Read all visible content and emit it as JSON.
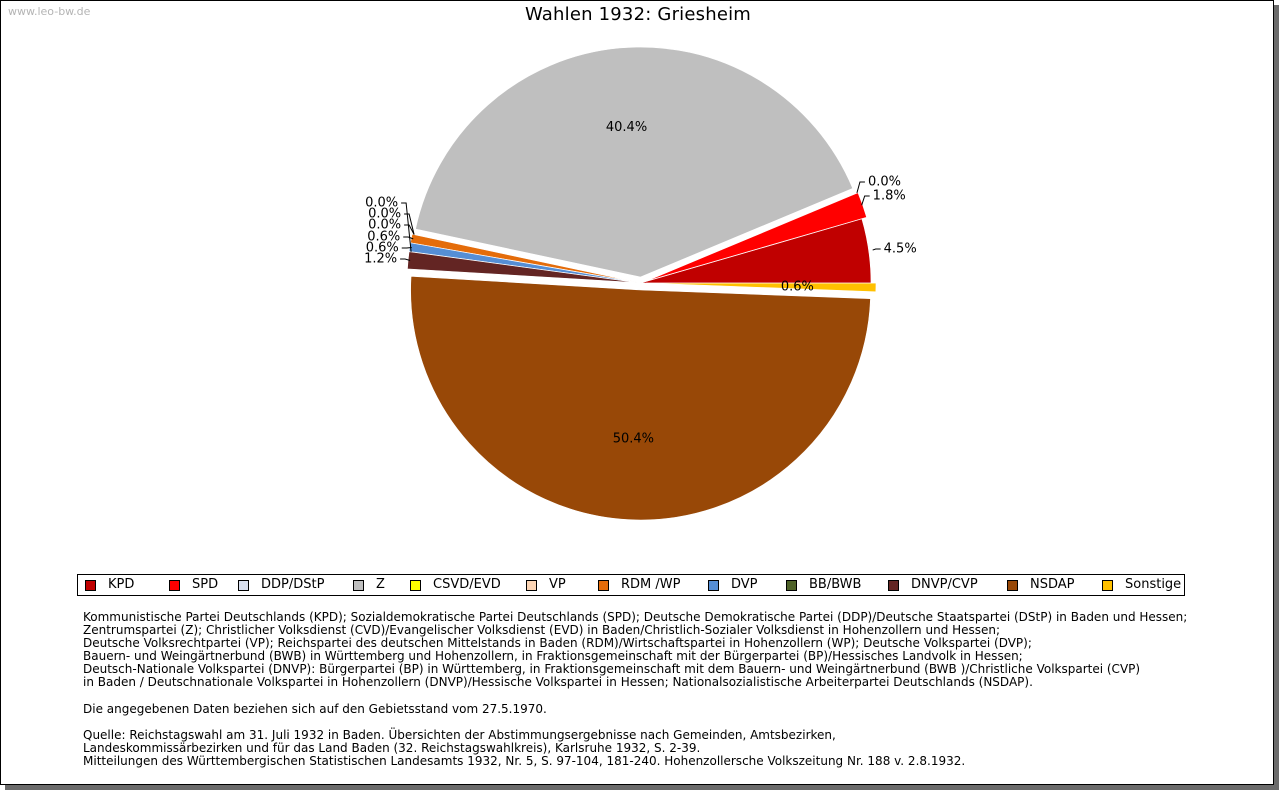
{
  "watermark": "www.leo-bw.de",
  "chart_data": {
    "type": "pie",
    "title": "Wahlen 1932: Griesheim",
    "slices": [
      {
        "name": "KPD",
        "value": 4.5,
        "label": "4.5%",
        "color": "#c00000"
      },
      {
        "name": "SPD",
        "value": 1.8,
        "label": "1.8%",
        "color": "#ff0000"
      },
      {
        "name": "DDP/DStP",
        "value": 0.0,
        "label": "0.0%",
        "color": "#d9e0ef"
      },
      {
        "name": "Z",
        "value": 40.4,
        "label": "40.4%",
        "color": "#bfbfbf"
      },
      {
        "name": "CSVD/EVD",
        "value": 0.0,
        "label": "0.0%",
        "color": "#ffff00"
      },
      {
        "name": "VP",
        "value": 0.0,
        "label": "0.0%",
        "color": "#fcd5b5"
      },
      {
        "name": "RDM /WP",
        "value": 0.6,
        "label": "0.6%",
        "color": "#e46c0a"
      },
      {
        "name": "DVP",
        "value": 0.6,
        "label": "0.6%",
        "color": "#558ed5"
      },
      {
        "name": "BB/BWB",
        "value": 0.0,
        "label": "0.0%",
        "color": "#4f6228"
      },
      {
        "name": "DNVP/CVP",
        "value": 1.2,
        "label": "1.2%",
        "color": "#632523"
      },
      {
        "name": "NSDAP",
        "value": 50.4,
        "label": "50.4%",
        "color": "#984807"
      },
      {
        "name": "Sonstige",
        "value": 0.6,
        "label": "0.6%",
        "color": "#ffc000"
      }
    ],
    "legend_placement": "bottom"
  },
  "notes": [
    "Kommunistische Partei Deutschlands (KPD); Sozialdemokratische Partei Deutschlands (SPD); Deutsche Demokratische Partei (DDP)/Deutsche Staatspartei (DStP) in Baden und Hessen;",
    "Zentrumspartei (Z); Christlicher Volksdienst (CVD)/Evangelischer Volksdienst (EVD) in Baden/Christlich-Sozialer Volksdienst in Hohenzollern und Hessen;",
    "Deutsche Volksrechtpartei (VP); Reichspartei des deutschen Mittelstands in Baden (RDM)/Wirtschaftspartei in Hohenzollern (WP); Deutsche Volkspartei (DVP);",
    "Bauern- und Weingärtnerbund (BWB) in Württemberg und Hohenzollern, in Fraktionsgemeinschaft mit der Bürgerpartei (BP)/Hessisches Landvolk in Hessen;",
    "Deutsch-Nationale Volkspartei (DNVP): Bürgerpartei (BP) in Württemberg, in Fraktionsgemeinschaft mit dem Bauern- und Weingärtnerbund (BWB )/Christliche Volkspartei (CVP)",
    "in Baden / Deutschnationale Volkspartei in Hohenzollern (DNVP)/Hessische Volkspartei in Hessen; Nationalsozialistische Arbeiterpartei Deutschlands (NSDAP).",
    "",
    "Die angegebenen Daten beziehen sich auf den Gebietsstand vom 27.5.1970.",
    "",
    "Quelle: Reichstagswahl am 31. Juli 1932 in Baden. Übersichten der Abstimmungsergebnisse nach Gemeinden, Amtsbezirken,",
    "Landeskommissärbezirken und für das Land Baden (32. Reichstagswahlkreis), Karlsruhe 1932, S. 2-39.",
    "Mitteilungen des Württembergischen Statistischen Landesamts 1932, Nr. 5, S. 97-104, 181-240. Hohenzollersche Volkszeitung Nr. 188 v. 2.8.1932."
  ]
}
